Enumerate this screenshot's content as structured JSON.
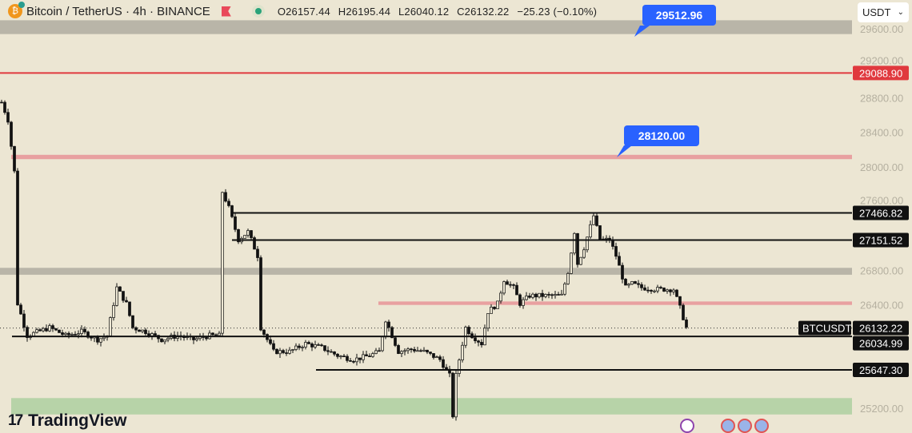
{
  "header": {
    "symbol": "Bitcoin / TetherUS · 4h · BINANCE",
    "open": "O26157.44",
    "high": "H26195.44",
    "low": "L26040.12",
    "close": "C26132.22",
    "change": "−25.23 (−0.10%)"
  },
  "currency_select": "USDT",
  "logo": "TradingView",
  "callouts": [
    {
      "text": "29512.96"
    },
    {
      "text": "28120.00"
    }
  ],
  "colors": {
    "bg": "#ece6d3",
    "red": "#e0393e",
    "pink": "#e8a0a0",
    "gray_zone": "#b9b5a8",
    "green_zone": "#b7d3a8",
    "callout": "#2962ff"
  },
  "chart_data": {
    "type": "candlestick",
    "ylim": [
      24980,
      29935
    ],
    "y_ticks": [
      "29600.00",
      "29200.00",
      "28800.00",
      "28400.00",
      "28000.00",
      "27600.00",
      "26800.00",
      "26400.00",
      "25200.00"
    ],
    "y_tick_values": [
      29600,
      29200,
      28800,
      28400,
      28000,
      27600,
      26800,
      26400,
      25200
    ],
    "approx_close_path": [
      [
        0,
        28750
      ],
      [
        2,
        28544
      ],
      [
        4,
        27943
      ],
      [
        5,
        26415
      ],
      [
        8,
        26044
      ],
      [
        15,
        26137
      ],
      [
        20,
        26044
      ],
      [
        25,
        26090
      ],
      [
        30,
        25998
      ],
      [
        33,
        26044
      ],
      [
        36,
        26600
      ],
      [
        39,
        26415
      ],
      [
        41,
        26137
      ],
      [
        45,
        26090
      ],
      [
        50,
        25998
      ],
      [
        55,
        26044
      ],
      [
        60,
        25998
      ],
      [
        65,
        26044
      ],
      [
        68,
        26044
      ],
      [
        69,
        27711
      ],
      [
        71,
        27526
      ],
      [
        74,
        27156
      ],
      [
        77,
        27248
      ],
      [
        80,
        26970
      ],
      [
        81,
        26137
      ],
      [
        85,
        25859
      ],
      [
        90,
        25859
      ],
      [
        95,
        25952
      ],
      [
        100,
        25905
      ],
      [
        105,
        25813
      ],
      [
        110,
        25766
      ],
      [
        115,
        25813
      ],
      [
        118,
        25859
      ],
      [
        120,
        26229
      ],
      [
        122,
        26044
      ],
      [
        124,
        25859
      ],
      [
        128,
        25887
      ],
      [
        132,
        25859
      ],
      [
        137,
        25766
      ],
      [
        140,
        25581
      ],
      [
        141,
        25118
      ],
      [
        142,
        25581
      ],
      [
        145,
        26137
      ],
      [
        147,
        26044
      ],
      [
        150,
        25952
      ],
      [
        152,
        26322
      ],
      [
        155,
        26415
      ],
      [
        157,
        26692
      ],
      [
        160,
        26600
      ],
      [
        162,
        26415
      ],
      [
        165,
        26507
      ],
      [
        170,
        26507
      ],
      [
        175,
        26507
      ],
      [
        177,
        26785
      ],
      [
        179,
        27248
      ],
      [
        180,
        26878
      ],
      [
        182,
        27063
      ],
      [
        185,
        27433
      ],
      [
        187,
        27156
      ],
      [
        190,
        27156
      ],
      [
        192,
        26970
      ],
      [
        195,
        26600
      ],
      [
        197,
        26646
      ],
      [
        200,
        26600
      ],
      [
        205,
        26581
      ],
      [
        210,
        26581
      ],
      [
        212,
        26368
      ],
      [
        214,
        26137
      ]
    ],
    "levels": [
      {
        "price_label": "29088.90",
        "kind": "red-line",
        "price": 29088.9
      },
      {
        "price_label": "27466.82",
        "kind": "black-line",
        "price": 27466.82
      },
      {
        "price_label": "27151.52",
        "kind": "black-line",
        "price": 27151.52
      },
      {
        "price_label": "26034.99",
        "kind": "black-line",
        "price": 26034.99
      },
      {
        "price_label": "25647.30",
        "kind": "black-line",
        "price": 25647.3
      }
    ],
    "zones": [
      {
        "kind": "gray",
        "from": 29540,
        "to": 29700
      },
      {
        "kind": "pink",
        "from": 28090,
        "to": 28140
      },
      {
        "kind": "gray",
        "from": 26750,
        "to": 26830
      },
      {
        "kind": "pink",
        "from": 26400,
        "to": 26440
      },
      {
        "kind": "green",
        "from": 25130,
        "to": 25320
      }
    ],
    "last_price": {
      "symbol": "BTCUSDT",
      "label": "26132.22",
      "price": 26132.22
    }
  }
}
